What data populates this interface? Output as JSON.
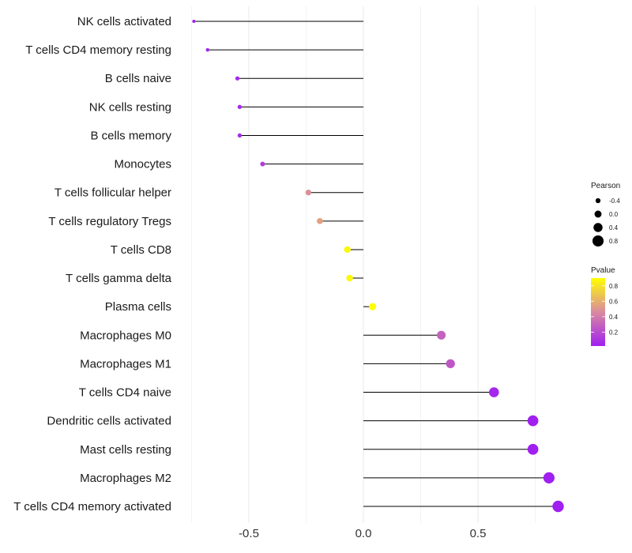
{
  "chart_data": {
    "type": "lollipop",
    "title": "",
    "xlabel": "",
    "ylabel": "",
    "xlim": [
      -0.75,
      0.86
    ],
    "x_ticks": [
      -0.5,
      0.0,
      0.5
    ],
    "x_tick_labels": [
      "-0.5",
      "0.0",
      "0.5"
    ],
    "categories": [
      "NK cells activated",
      "T cells CD4 memory resting",
      "B cells naive",
      "NK cells resting",
      "B cells memory",
      "Monocytes",
      "T cells follicular helper",
      "T cells regulatory  Tregs",
      "T cells CD8",
      "T cells gamma delta",
      "Plasma cells",
      "Macrophages M0",
      "Macrophages M1",
      "T cells CD4 naive",
      "Dendritic cells activated",
      "Mast cells resting",
      "Macrophages M2",
      "T cells CD4 memory activated"
    ],
    "pearson": [
      -0.74,
      -0.68,
      -0.55,
      -0.54,
      -0.54,
      -0.44,
      -0.24,
      -0.19,
      -0.07,
      -0.06,
      0.04,
      0.34,
      0.38,
      0.57,
      0.74,
      0.74,
      0.81,
      0.85
    ],
    "pvalue": [
      0.02,
      0.05,
      0.06,
      0.07,
      0.07,
      0.15,
      0.48,
      0.55,
      0.87,
      0.88,
      0.92,
      0.3,
      0.25,
      0.05,
      0.01,
      0.01,
      0.01,
      0.01
    ],
    "legends": {
      "size": {
        "title": "Pearson",
        "values": [
          -0.4,
          0.0,
          0.4,
          0.8
        ],
        "labels": [
          "-0.4",
          "0.0",
          "0.4",
          "0.8"
        ]
      },
      "color": {
        "title": "Pvalue",
        "range": [
          0.02,
          0.9
        ],
        "ticks": [
          0.2,
          0.4,
          0.6,
          0.8
        ],
        "labels": [
          "0.2",
          "0.4",
          "0.6",
          "0.8"
        ],
        "low_color": "#a020f0",
        "mid_color": "#d98aa0",
        "high_color": "#ffff00"
      }
    }
  },
  "colors": {
    "stem": "#000000",
    "grid": "#ebebeb"
  }
}
